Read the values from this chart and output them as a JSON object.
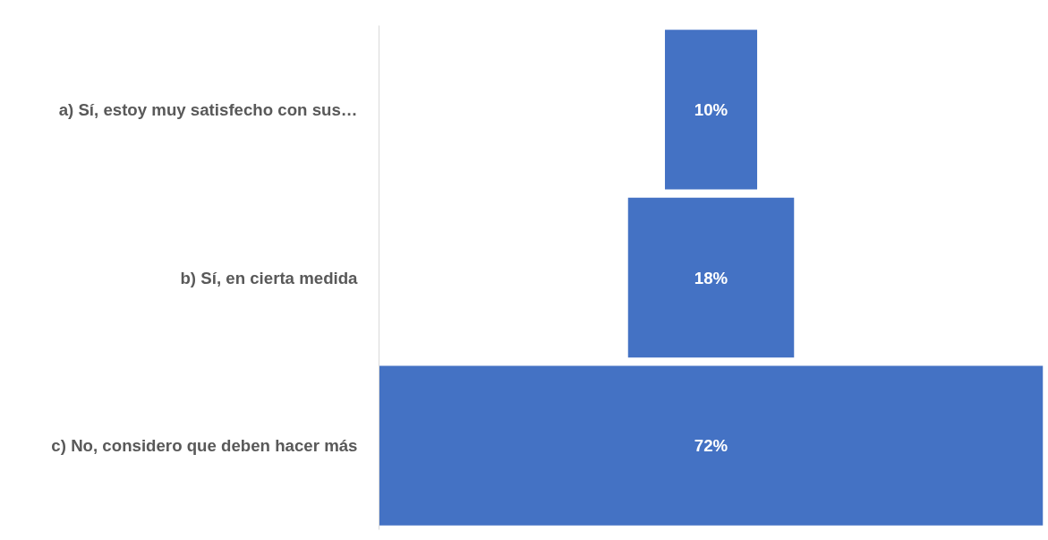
{
  "chart_data": {
    "type": "other",
    "categories": [
      "a) Sí, estoy muy satisfecho con sus…",
      "b) Sí, en cierta medida",
      "c) No, considero que deben hacer más"
    ],
    "values": [
      10,
      18,
      72
    ],
    "value_labels": [
      "10%",
      "18%",
      "72%"
    ],
    "color": "#4472c4"
  }
}
